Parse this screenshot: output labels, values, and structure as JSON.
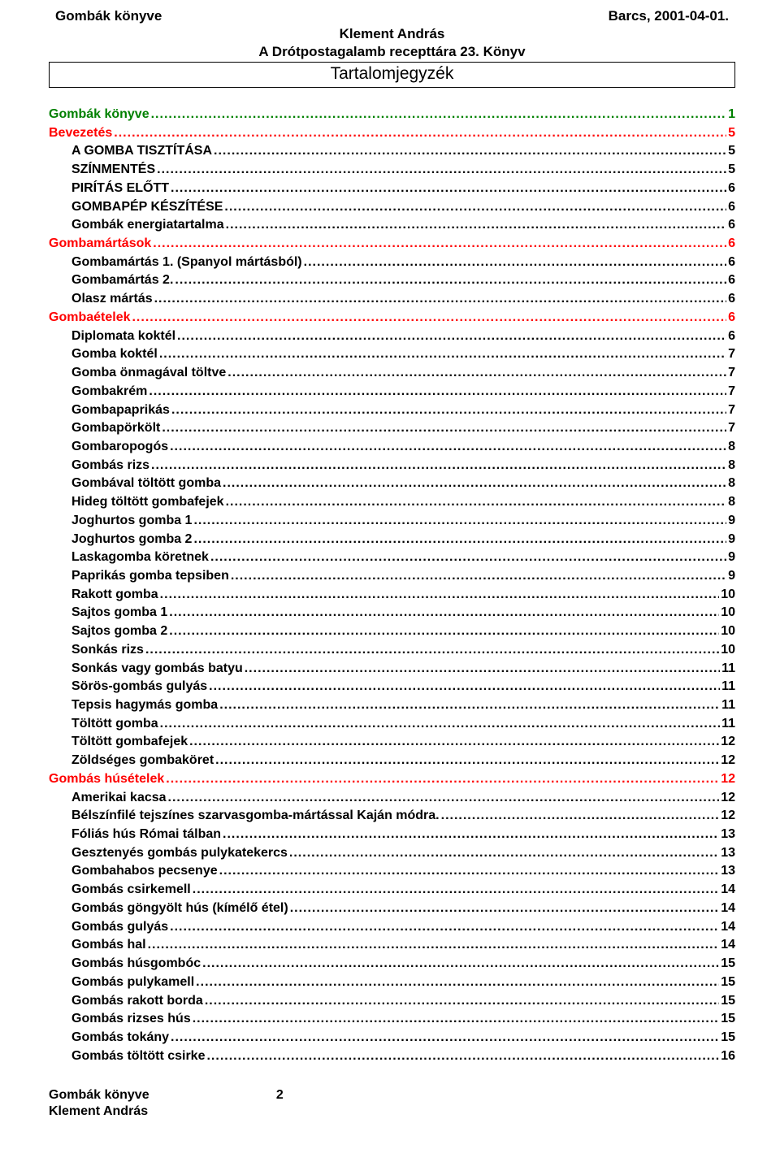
{
  "header": {
    "title_left": "Gombák könyve",
    "title_right": "Barcs, 2001-04-01.",
    "author": "Klement András",
    "subtitle": "A Drótpostagalamb recepttára 23. Könyv",
    "boxed": "Tartalomjegyzék"
  },
  "colors": {
    "text": "#000000",
    "red": "#ff0000",
    "green": "#008000",
    "background": "#ffffff",
    "border": "#000000"
  },
  "toc": [
    {
      "label": "Gombák könyve",
      "page": "1",
      "indent": 0,
      "color": "#008000"
    },
    {
      "label": "Bevezetés",
      "page": "5",
      "indent": 0,
      "color": "#ff0000"
    },
    {
      "label": "A GOMBA TISZTÍTÁSA",
      "page": "5",
      "indent": 1,
      "color": "#000000"
    },
    {
      "label": "SZÍNMENTÉS",
      "page": "5",
      "indent": 1,
      "color": "#000000"
    },
    {
      "label": "PIRÍTÁS ELŐTT",
      "page": "6",
      "indent": 1,
      "color": "#000000"
    },
    {
      "label": "GOMBAPÉP KÉSZÍTÉSE",
      "page": "6",
      "indent": 1,
      "color": "#000000"
    },
    {
      "label": "Gombák energiatartalma",
      "page": "6",
      "indent": 1,
      "color": "#000000"
    },
    {
      "label": "Gombamártások",
      "page": "6",
      "indent": 0,
      "color": "#ff0000"
    },
    {
      "label": "Gombamártás 1. (Spanyol mártásból)",
      "page": "6",
      "indent": 1,
      "color": "#000000"
    },
    {
      "label": "Gombamártás 2.",
      "page": "6",
      "indent": 1,
      "color": "#000000"
    },
    {
      "label": "Olasz mártás",
      "page": "6",
      "indent": 1,
      "color": "#000000"
    },
    {
      "label": "Gombaételek",
      "page": "6",
      "indent": 0,
      "color": "#ff0000"
    },
    {
      "label": "Diplomata koktél",
      "page": "6",
      "indent": 1,
      "color": "#000000"
    },
    {
      "label": "Gomba koktél",
      "page": "7",
      "indent": 1,
      "color": "#000000"
    },
    {
      "label": "Gomba önmagával töltve",
      "page": "7",
      "indent": 1,
      "color": "#000000"
    },
    {
      "label": "Gombakrém",
      "page": "7",
      "indent": 1,
      "color": "#000000"
    },
    {
      "label": "Gombapaprikás",
      "page": "7",
      "indent": 1,
      "color": "#000000"
    },
    {
      "label": "Gombapörkölt",
      "page": "7",
      "indent": 1,
      "color": "#000000"
    },
    {
      "label": "Gombaropogós",
      "page": "8",
      "indent": 1,
      "color": "#000000"
    },
    {
      "label": "Gombás rizs",
      "page": "8",
      "indent": 1,
      "color": "#000000"
    },
    {
      "label": "Gombával töltött gomba",
      "page": "8",
      "indent": 1,
      "color": "#000000"
    },
    {
      "label": "Hideg töltött gombafejek",
      "page": "8",
      "indent": 1,
      "color": "#000000"
    },
    {
      "label": "Joghurtos gomba 1",
      "page": "9",
      "indent": 1,
      "color": "#000000"
    },
    {
      "label": "Joghurtos gomba 2",
      "page": "9",
      "indent": 1,
      "color": "#000000"
    },
    {
      "label": "Laskagomba köretnek",
      "page": "9",
      "indent": 1,
      "color": "#000000"
    },
    {
      "label": "Paprikás gomba tepsiben",
      "page": "9",
      "indent": 1,
      "color": "#000000"
    },
    {
      "label": "Rakott gomba",
      "page": "10",
      "indent": 1,
      "color": "#000000"
    },
    {
      "label": "Sajtos gomba 1",
      "page": "10",
      "indent": 1,
      "color": "#000000"
    },
    {
      "label": "Sajtos gomba 2",
      "page": "10",
      "indent": 1,
      "color": "#000000"
    },
    {
      "label": "Sonkás rizs",
      "page": "10",
      "indent": 1,
      "color": "#000000"
    },
    {
      "label": "Sonkás vagy gombás batyu",
      "page": "11",
      "indent": 1,
      "color": "#000000"
    },
    {
      "label": "Sörös-gombás gulyás",
      "page": "11",
      "indent": 1,
      "color": "#000000"
    },
    {
      "label": "Tepsis hagymás gomba",
      "page": "11",
      "indent": 1,
      "color": "#000000"
    },
    {
      "label": "Töltött gomba",
      "page": "11",
      "indent": 1,
      "color": "#000000"
    },
    {
      "label": "Töltött gombafejek",
      "page": "12",
      "indent": 1,
      "color": "#000000"
    },
    {
      "label": "Zöldséges gombaköret",
      "page": "12",
      "indent": 1,
      "color": "#000000"
    },
    {
      "label": "Gombás húsételek",
      "page": "12",
      "indent": 0,
      "color": "#ff0000"
    },
    {
      "label": "Amerikai kacsa",
      "page": "12",
      "indent": 1,
      "color": "#000000"
    },
    {
      "label": "Bélszínfilé tejszínes szarvasgomba-mártással Kaján módra.",
      "page": "12",
      "indent": 1,
      "color": "#000000"
    },
    {
      "label": "Fóliás hús Római tálban",
      "page": "13",
      "indent": 1,
      "color": "#000000"
    },
    {
      "label": "Gesztenyés gombás pulykatekercs",
      "page": "13",
      "indent": 1,
      "color": "#000000"
    },
    {
      "label": "Gombahabos pecsenye",
      "page": "13",
      "indent": 1,
      "color": "#000000"
    },
    {
      "label": "Gombás csirkemell",
      "page": "14",
      "indent": 1,
      "color": "#000000"
    },
    {
      "label": "Gombás göngyölt hús (kímélő étel)",
      "page": "14",
      "indent": 1,
      "color": "#000000"
    },
    {
      "label": "Gombás gulyás",
      "page": "14",
      "indent": 1,
      "color": "#000000"
    },
    {
      "label": "Gombás hal",
      "page": "14",
      "indent": 1,
      "color": "#000000"
    },
    {
      "label": "Gombás húsgombóc",
      "page": "15",
      "indent": 1,
      "color": "#000000"
    },
    {
      "label": "Gombás pulykamell",
      "page": "15",
      "indent": 1,
      "color": "#000000"
    },
    {
      "label": "Gombás rakott borda",
      "page": "15",
      "indent": 1,
      "color": "#000000"
    },
    {
      "label": "Gombás rizses hús",
      "page": "15",
      "indent": 1,
      "color": "#000000"
    },
    {
      "label": "Gombás tokány",
      "page": "15",
      "indent": 1,
      "color": "#000000"
    },
    {
      "label": "Gombás töltött csirke",
      "page": "16",
      "indent": 1,
      "color": "#000000"
    }
  ],
  "footer": {
    "left": "Gombák könyve",
    "page_number": "2",
    "author": "Klement András"
  }
}
